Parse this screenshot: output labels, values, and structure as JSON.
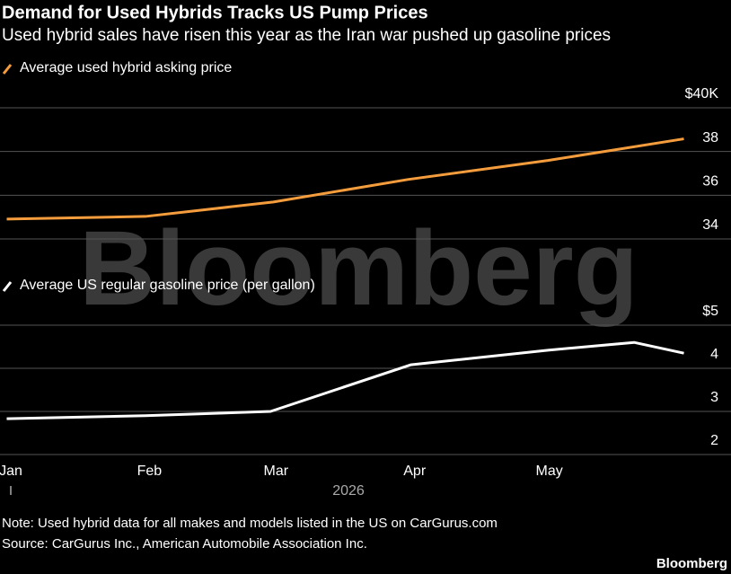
{
  "header": {
    "title": "Demand for Used Hybrids Tracks US Pump Prices",
    "subtitle": "Used hybrid sales have risen this year as the Iran war pushed up gasoline prices"
  },
  "watermark": "Bloomberg",
  "chart_data": [
    {
      "type": "line",
      "xlim": [
        0.92,
        6.35
      ],
      "ylim": [
        34,
        40
      ],
      "yticks": [
        34,
        36,
        38,
        {
          "value": 40,
          "label": "$40K"
        }
      ],
      "grid": true,
      "x": [
        0.97,
        2.0,
        2.95,
        3.95,
        4.99,
        6.0
      ],
      "series": [
        {
          "name": "Average used hybrid asking price",
          "color": "#f59d3d",
          "values": [
            34.91,
            35.03,
            35.69,
            36.72,
            37.59,
            38.58
          ]
        }
      ]
    },
    {
      "type": "line",
      "xlim": [
        0.92,
        6.35
      ],
      "ylim": [
        2,
        5
      ],
      "yticks": [
        2,
        3,
        4,
        {
          "value": 5,
          "label": "$5"
        }
      ],
      "grid": true,
      "xticks": [
        {
          "value": 1,
          "label": "Jan"
        },
        {
          "value": 2.03,
          "label": "Feb"
        },
        {
          "value": 2.97,
          "label": "Mar"
        },
        {
          "value": 4.0,
          "label": "Apr"
        },
        {
          "value": 5.0,
          "label": "May"
        }
      ],
      "xlabel": "2026",
      "x": [
        0.97,
        2.0,
        2.93,
        3.97,
        4.99,
        5.63,
        6.0
      ],
      "series": [
        {
          "name": "Average US regular gasoline price (per gallon)",
          "color": "#ffffff",
          "values": [
            2.83,
            2.9,
            3.0,
            4.08,
            4.42,
            4.6,
            4.35
          ]
        }
      ]
    }
  ],
  "footer": {
    "note": "Note: Used hybrid data for all makes and models listed in the US on CarGurus.com",
    "source": "Source: CarGurus Inc., American Automobile Association Inc.",
    "brand": "Bloomberg"
  }
}
